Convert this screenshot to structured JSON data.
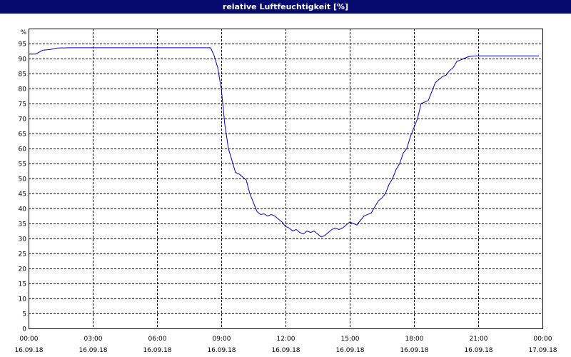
{
  "chart_data": {
    "type": "line",
    "title": "relative Luftfeuchtigkeit [%]",
    "ylabel": "%",
    "ylim": [
      0,
      95
    ],
    "yticks": [
      0,
      5,
      10,
      15,
      20,
      25,
      30,
      35,
      40,
      45,
      50,
      55,
      60,
      65,
      70,
      75,
      80,
      85,
      90,
      95
    ],
    "xlim": [
      "2018-09-16T00:00",
      "2018-09-17T00:00"
    ],
    "xticks": [
      {
        "time": "00:00",
        "date": "16.09.18"
      },
      {
        "time": "03:00",
        "date": "16.09.18"
      },
      {
        "time": "06:00",
        "date": "16.09.18"
      },
      {
        "time": "09:00",
        "date": "16.09.18"
      },
      {
        "time": "12:00",
        "date": "16.09.18"
      },
      {
        "time": "15:00",
        "date": "16.09.18"
      },
      {
        "time": "18:00",
        "date": "16.09.18"
      },
      {
        "time": "21:00",
        "date": "16.09.18"
      },
      {
        "time": "00:00",
        "date": "17.09.18"
      }
    ],
    "grid": true,
    "line_color": "#0000cc",
    "series": [
      {
        "x": [
          "00:00",
          "00:20",
          "00:40",
          "01:00",
          "01:20",
          "02:00",
          "03:00",
          "04:00",
          "05:00",
          "06:00",
          "07:00",
          "08:00",
          "08:30",
          "08:40",
          "08:50",
          "09:00",
          "09:10",
          "09:20",
          "09:30",
          "09:40",
          "09:50",
          "10:00",
          "10:10",
          "10:20",
          "10:30",
          "10:40",
          "10:50",
          "11:00",
          "11:10",
          "11:20",
          "11:30",
          "11:40",
          "11:50",
          "12:00",
          "12:10",
          "12:20",
          "12:30",
          "12:40",
          "12:50",
          "13:00",
          "13:10",
          "13:20",
          "13:30",
          "13:40",
          "13:50",
          "14:00",
          "14:10",
          "14:20",
          "14:30",
          "14:40",
          "14:50",
          "15:00",
          "15:10",
          "15:20",
          "15:30",
          "15:40",
          "15:50",
          "16:00",
          "16:10",
          "16:20",
          "16:30",
          "16:40",
          "16:50",
          "17:00",
          "17:10",
          "17:20",
          "17:30",
          "17:40",
          "17:50",
          "18:00",
          "18:10",
          "18:20",
          "18:30",
          "18:40",
          "18:50",
          "19:00",
          "19:10",
          "19:20",
          "19:30",
          "19:40",
          "19:50",
          "20:00",
          "20:10",
          "20:20",
          "20:30",
          "20:40",
          "20:50",
          "21:00",
          "21:10",
          "21:20",
          "21:30",
          "21:40",
          "21:50",
          "22:00",
          "22:10",
          "22:20",
          "22:30",
          "22:40",
          "22:50",
          "23:00",
          "23:20",
          "23:40",
          "23:50"
        ],
        "values": [
          91.5,
          91.5,
          92.8,
          93.0,
          93.5,
          93.6,
          93.6,
          93.6,
          93.6,
          93.6,
          93.6,
          93.6,
          93.6,
          91.0,
          87.0,
          80.0,
          68.0,
          60.0,
          56.0,
          52.0,
          51.5,
          50.5,
          49.5,
          45.0,
          42.0,
          39.0,
          38.0,
          38.2,
          37.5,
          38.0,
          37.5,
          36.5,
          35.5,
          34.0,
          33.5,
          32.5,
          33.0,
          32.0,
          31.5,
          32.5,
          32.0,
          32.5,
          31.5,
          30.5,
          31.0,
          32.0,
          33.0,
          33.5,
          33.0,
          33.5,
          34.5,
          35.5,
          35.0,
          34.5,
          36.0,
          37.5,
          38.0,
          38.5,
          40.5,
          42.5,
          43.5,
          45.0,
          48.0,
          50.0,
          53.0,
          55.0,
          58.5,
          60.0,
          64.0,
          67.0,
          70.0,
          75.0,
          75.5,
          76.0,
          79.0,
          82.0,
          83.0,
          84.0,
          84.5,
          86.0,
          87.0,
          89.0,
          89.5,
          90.0,
          90.5,
          90.8,
          90.9,
          90.9,
          90.9,
          90.9,
          90.9,
          90.9,
          90.9,
          90.9,
          90.9,
          90.9,
          90.9,
          90.9,
          90.9,
          90.9,
          90.9,
          90.9,
          90.9
        ]
      }
    ]
  }
}
